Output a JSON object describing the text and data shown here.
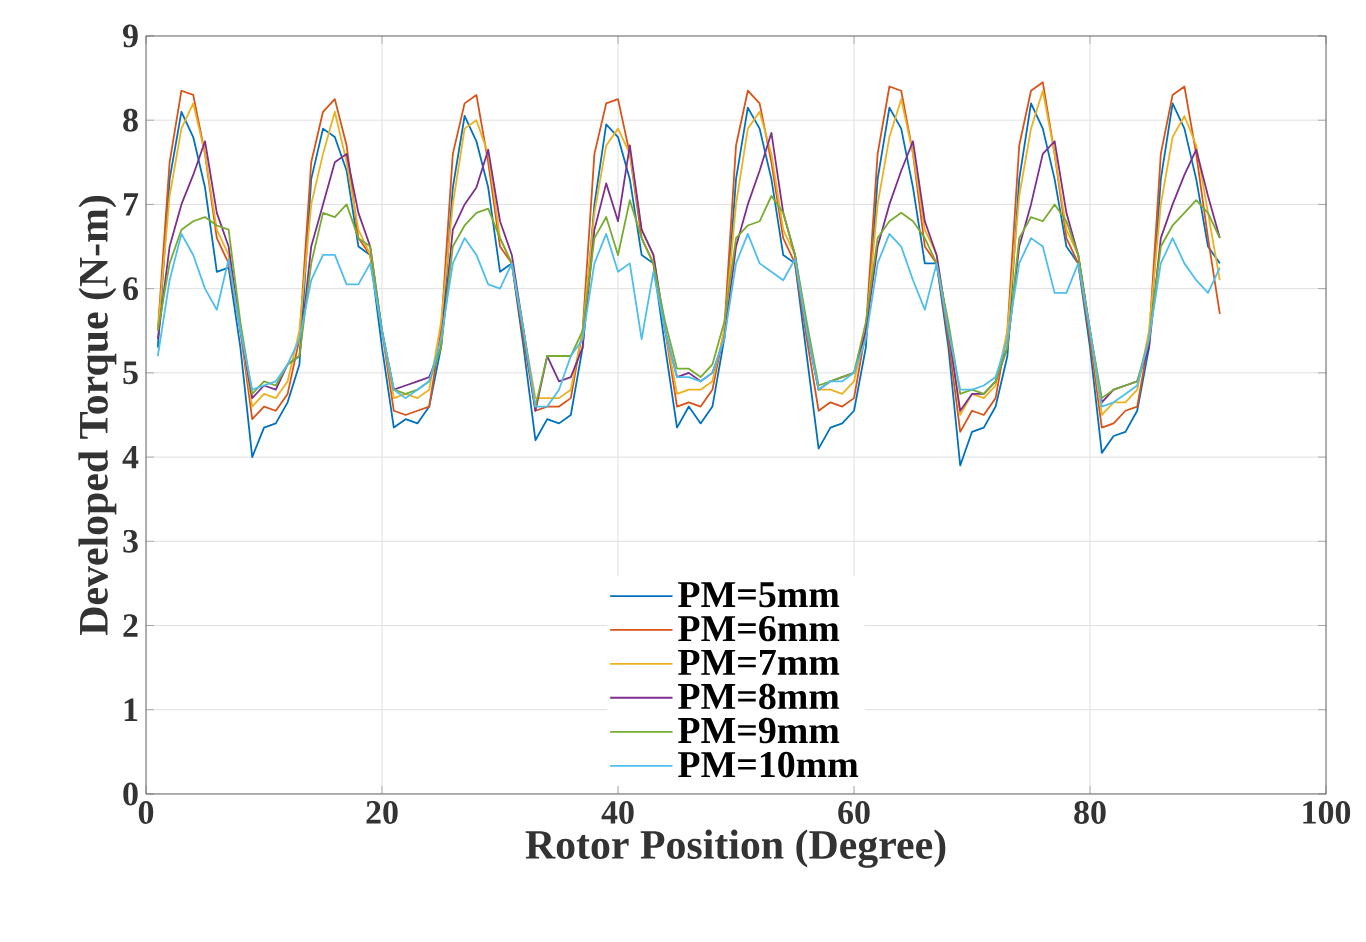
{
  "chart_data": {
    "type": "line",
    "xlabel": "Rotor Position (Degree)",
    "ylabel": "Developed Torque (N-m)",
    "x": [
      1,
      2,
      3,
      4,
      5,
      6,
      7,
      8,
      9,
      10,
      11,
      12,
      13,
      14,
      15,
      16,
      17,
      18,
      19,
      20,
      21,
      22,
      23,
      24,
      25,
      26,
      27,
      28,
      29,
      30,
      31,
      32,
      33,
      34,
      35,
      36,
      37,
      38,
      39,
      40,
      41,
      42,
      43,
      44,
      45,
      46,
      47,
      48,
      49,
      50,
      51,
      52,
      53,
      54,
      55,
      56,
      57,
      58,
      59,
      60,
      61,
      62,
      63,
      64,
      65,
      66,
      67,
      68,
      69,
      70,
      71,
      72,
      73,
      74,
      75,
      76,
      77,
      78,
      79,
      80,
      81,
      82,
      83,
      84,
      85,
      86,
      87,
      88,
      89,
      90,
      91
    ],
    "series": [
      {
        "name": "PM=5mm",
        "color": "#0072bd",
        "values": [
          5.3,
          7.3,
          8.1,
          7.8,
          7.2,
          6.2,
          6.25,
          5.3,
          4.0,
          4.35,
          4.4,
          4.65,
          5.1,
          7.3,
          7.9,
          7.8,
          7.4,
          6.5,
          6.4,
          5.3,
          4.35,
          4.45,
          4.4,
          4.6,
          5.3,
          7.2,
          8.05,
          7.75,
          7.2,
          6.2,
          6.3,
          5.3,
          4.2,
          4.45,
          4.4,
          4.5,
          5.3,
          7.0,
          7.95,
          7.8,
          7.3,
          6.4,
          6.3,
          5.3,
          4.35,
          4.6,
          4.4,
          4.6,
          5.4,
          7.3,
          8.15,
          7.9,
          7.3,
          6.4,
          6.3,
          5.2,
          4.1,
          4.35,
          4.4,
          4.55,
          5.3,
          7.3,
          8.15,
          7.9,
          7.2,
          6.3,
          6.3,
          5.3,
          3.9,
          4.3,
          4.35,
          4.6,
          5.2,
          7.3,
          8.2,
          7.9,
          7.3,
          6.5,
          6.3,
          5.3,
          4.05,
          4.25,
          4.3,
          4.55,
          5.3,
          7.3,
          8.2,
          7.9,
          7.3,
          6.5,
          6.3
        ]
      },
      {
        "name": "PM=6mm",
        "color": "#d95319",
        "values": [
          5.5,
          7.5,
          8.35,
          8.3,
          7.6,
          6.6,
          6.3,
          5.5,
          4.45,
          4.6,
          4.55,
          4.75,
          5.4,
          7.5,
          8.1,
          8.25,
          7.7,
          6.6,
          6.4,
          5.5,
          4.55,
          4.5,
          4.55,
          4.6,
          5.5,
          7.6,
          8.2,
          8.3,
          7.5,
          6.5,
          6.3,
          5.4,
          4.55,
          4.6,
          4.6,
          4.7,
          5.5,
          7.6,
          8.2,
          8.25,
          7.6,
          6.6,
          6.3,
          5.5,
          4.6,
          4.65,
          4.6,
          4.8,
          5.5,
          7.7,
          8.35,
          8.2,
          7.5,
          6.6,
          6.3,
          5.4,
          4.55,
          4.65,
          4.6,
          4.7,
          5.5,
          7.6,
          8.4,
          8.35,
          7.6,
          6.5,
          6.3,
          5.4,
          4.3,
          4.55,
          4.5,
          4.7,
          5.5,
          7.7,
          8.35,
          8.45,
          7.6,
          6.6,
          6.3,
          5.4,
          4.35,
          4.4,
          4.55,
          4.6,
          5.4,
          7.6,
          8.3,
          8.4,
          7.6,
          6.6,
          5.7
        ]
      },
      {
        "name": "PM=7mm",
        "color": "#edb120",
        "values": [
          5.5,
          7.1,
          7.9,
          8.2,
          7.6,
          6.7,
          6.4,
          5.5,
          4.6,
          4.75,
          4.7,
          4.9,
          5.5,
          7.0,
          7.6,
          8.1,
          7.5,
          6.7,
          6.4,
          5.5,
          4.7,
          4.75,
          4.7,
          4.8,
          5.6,
          7.0,
          7.9,
          8.0,
          7.6,
          6.6,
          6.3,
          5.5,
          4.7,
          4.7,
          4.7,
          4.8,
          5.5,
          6.9,
          7.7,
          7.9,
          7.6,
          6.7,
          6.4,
          5.5,
          4.75,
          4.8,
          4.8,
          4.9,
          5.5,
          7.0,
          7.9,
          8.1,
          7.6,
          6.7,
          6.4,
          5.5,
          4.8,
          4.8,
          4.75,
          4.9,
          5.5,
          7.0,
          7.8,
          8.25,
          7.6,
          6.7,
          6.4,
          5.5,
          4.5,
          4.75,
          4.7,
          4.85,
          5.5,
          7.1,
          7.9,
          8.35,
          7.6,
          6.7,
          6.4,
          5.5,
          4.5,
          4.65,
          4.65,
          4.8,
          5.5,
          7.0,
          7.8,
          8.05,
          7.7,
          6.9,
          6.1
        ]
      },
      {
        "name": "PM=8mm",
        "color": "#7e2f8e",
        "values": [
          5.4,
          6.5,
          7.0,
          7.35,
          7.75,
          6.9,
          6.5,
          5.5,
          4.7,
          4.85,
          4.8,
          5.1,
          5.2,
          6.5,
          7.0,
          7.5,
          7.6,
          6.9,
          6.5,
          5.5,
          4.8,
          4.85,
          4.9,
          4.95,
          5.3,
          6.7,
          7.0,
          7.2,
          7.65,
          6.8,
          6.4,
          5.5,
          4.55,
          5.2,
          4.9,
          4.95,
          5.3,
          6.7,
          7.25,
          6.8,
          7.7,
          6.7,
          6.4,
          5.5,
          4.95,
          5.0,
          4.9,
          5.0,
          5.4,
          6.5,
          7.0,
          7.4,
          7.85,
          6.9,
          6.4,
          5.5,
          4.8,
          4.9,
          4.95,
          5.0,
          5.5,
          6.5,
          7.0,
          7.4,
          7.75,
          6.8,
          6.4,
          5.5,
          4.55,
          4.75,
          4.75,
          4.9,
          5.3,
          6.5,
          7.0,
          7.6,
          7.75,
          6.9,
          6.4,
          5.5,
          4.65,
          4.8,
          4.85,
          4.9,
          5.3,
          6.6,
          7.0,
          7.35,
          7.65,
          7.1,
          6.6
        ]
      },
      {
        "name": "PM=9mm",
        "color": "#77ac30",
        "values": [
          5.5,
          6.3,
          6.7,
          6.8,
          6.85,
          6.75,
          6.7,
          5.6,
          4.75,
          4.9,
          4.85,
          5.1,
          5.2,
          6.3,
          6.9,
          6.85,
          7.0,
          6.6,
          6.5,
          5.5,
          4.8,
          4.75,
          4.8,
          4.9,
          5.3,
          6.5,
          6.75,
          6.9,
          6.95,
          6.6,
          6.3,
          5.5,
          4.6,
          5.2,
          5.2,
          5.2,
          5.5,
          6.6,
          6.85,
          6.4,
          7.05,
          6.6,
          6.3,
          5.6,
          5.05,
          5.05,
          4.95,
          5.1,
          5.6,
          6.6,
          6.75,
          6.8,
          7.1,
          6.9,
          6.4,
          5.6,
          4.85,
          4.9,
          4.95,
          5.0,
          5.6,
          6.6,
          6.8,
          6.9,
          6.8,
          6.6,
          6.3,
          5.6,
          4.75,
          4.8,
          4.75,
          4.9,
          5.3,
          6.6,
          6.85,
          6.8,
          7.0,
          6.8,
          6.4,
          5.5,
          4.7,
          4.8,
          4.85,
          4.9,
          5.4,
          6.5,
          6.75,
          6.9,
          7.05,
          6.9,
          6.6
        ]
      },
      {
        "name": "PM=10mm",
        "color": "#4dbeee",
        "values": [
          5.2,
          6.1,
          6.65,
          6.4,
          6.0,
          5.75,
          6.35,
          5.5,
          4.8,
          4.85,
          4.9,
          5.1,
          5.4,
          6.1,
          6.4,
          6.4,
          6.05,
          6.05,
          6.3,
          5.5,
          4.8,
          4.7,
          4.8,
          4.9,
          5.4,
          6.3,
          6.6,
          6.4,
          6.05,
          6.0,
          6.3,
          5.5,
          4.6,
          4.6,
          4.8,
          5.2,
          5.4,
          6.3,
          6.65,
          6.2,
          6.3,
          5.4,
          6.2,
          5.5,
          4.95,
          4.95,
          4.9,
          5.0,
          5.4,
          6.3,
          6.65,
          6.3,
          6.2,
          6.1,
          6.35,
          5.5,
          4.8,
          4.9,
          4.9,
          5.0,
          5.4,
          6.3,
          6.65,
          6.5,
          6.1,
          5.75,
          6.3,
          5.5,
          4.8,
          4.8,
          4.85,
          4.95,
          5.4,
          6.3,
          6.6,
          6.5,
          5.95,
          5.95,
          6.3,
          5.5,
          4.6,
          4.65,
          4.75,
          4.85,
          5.4,
          6.3,
          6.6,
          6.3,
          6.1,
          5.95,
          6.25
        ]
      }
    ],
    "xlim": [
      0,
      100
    ],
    "ylim": [
      0,
      9
    ],
    "xticks": [
      0,
      20,
      40,
      60,
      80,
      100
    ],
    "yticks": [
      0,
      1,
      2,
      3,
      4,
      5,
      6,
      7,
      8,
      9
    ],
    "grid": true,
    "legend": "bottom",
    "line_style": "solid"
  }
}
